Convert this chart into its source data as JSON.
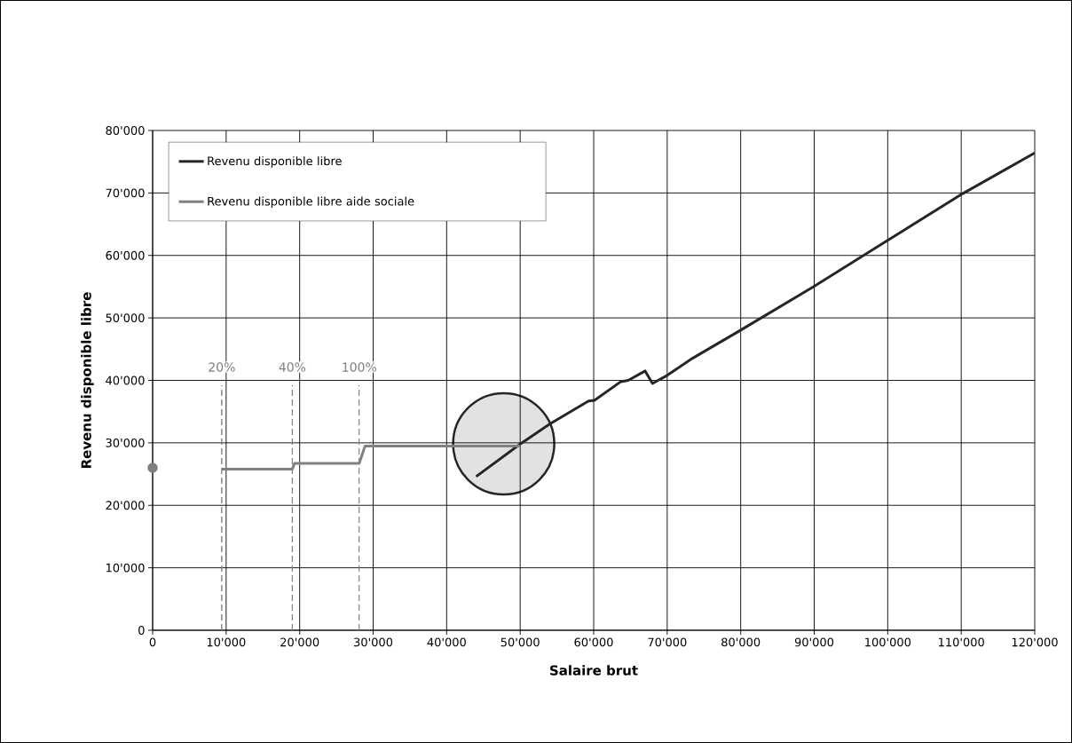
{
  "chart_data": {
    "type": "line",
    "xlabel": "Salaire brut",
    "ylabel": "Revenu disponible libre",
    "xlim": [
      0,
      120000
    ],
    "ylim": [
      0,
      80000
    ],
    "xticks": [
      0,
      {
        "value": 10000,
        "label": "10'000"
      },
      {
        "value": 20000,
        "label": "20'000"
      },
      {
        "value": 30000,
        "label": "30'000"
      },
      {
        "value": 40000,
        "label": "40'000"
      },
      {
        "value": 50000,
        "label": "50'000"
      },
      {
        "value": 60000,
        "label": "60'000"
      },
      {
        "value": 70000,
        "label": "70'000"
      },
      {
        "value": 80000,
        "label": "80'000"
      },
      {
        "value": 90000,
        "label": "90'000"
      },
      {
        "value": 100000,
        "label": "100'000"
      },
      {
        "value": 110000,
        "label": "110'000"
      },
      {
        "value": 120000,
        "label": "120'000"
      }
    ],
    "yticks": [
      0,
      {
        "value": 10000,
        "label": "10'000"
      },
      {
        "value": 20000,
        "label": "20'000"
      },
      {
        "value": 30000,
        "label": "30'000"
      },
      {
        "value": 40000,
        "label": "40'000"
      },
      {
        "value": 50000,
        "label": "50'000"
      },
      {
        "value": 60000,
        "label": "60'000"
      },
      {
        "value": 70000,
        "label": "70'000"
      },
      {
        "value": 80000,
        "label": "80'000"
      }
    ],
    "grid": true,
    "legend": "top left",
    "series": [
      {
        "name": "Revenu disponible libre",
        "color": "#262626",
        "x": [
          44000,
          50000,
          54000,
          59300,
          60100,
          63700,
          64700,
          67000,
          68000,
          70000,
          73400,
          79800,
          89900,
          99700,
          110200,
          120000
        ],
        "values": [
          24600,
          29800,
          33000,
          36700,
          36800,
          39800,
          40000,
          41500,
          39500,
          40800,
          43500,
          47900,
          55000,
          62200,
          69900,
          76400
        ]
      },
      {
        "name": "Revenu disponible libre aide sociale",
        "color": "#808080",
        "x": [
          9400,
          19000,
          19300,
          28100,
          28900,
          50000
        ],
        "values": [
          25800,
          25800,
          26700,
          26700,
          29500,
          29500
        ]
      },
      {
        "type": "scatter",
        "color": "#808080",
        "x": [
          0
        ],
        "values": [
          26000
        ]
      }
    ],
    "ref_lines": [
      {
        "axis": "x",
        "value": 9400,
        "color": "#808080",
        "line_style": "dashed"
      },
      {
        "axis": "x",
        "value": 19000,
        "color": "#808080",
        "line_style": "dashed"
      },
      {
        "axis": "x",
        "value": 28100,
        "color": "#808080",
        "line_style": "dashed"
      }
    ],
    "annotations": [
      "20%",
      "40%",
      "100%"
    ]
  }
}
